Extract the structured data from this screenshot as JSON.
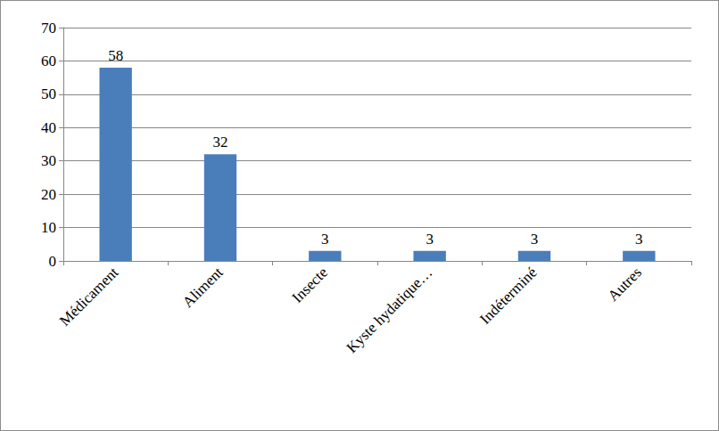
{
  "chart_data": {
    "type": "bar",
    "categories": [
      "Médicament",
      "Aliment",
      "Insecte",
      "Kyste hydatique…",
      "Indéterminé",
      "Autres"
    ],
    "values": [
      58,
      32,
      3,
      3,
      3,
      3
    ],
    "color": "#4a7ebb",
    "ylim": [
      0,
      70
    ],
    "yticks": [
      0,
      10,
      20,
      30,
      40,
      50,
      60,
      70
    ],
    "grid": true,
    "data_labels": true
  }
}
